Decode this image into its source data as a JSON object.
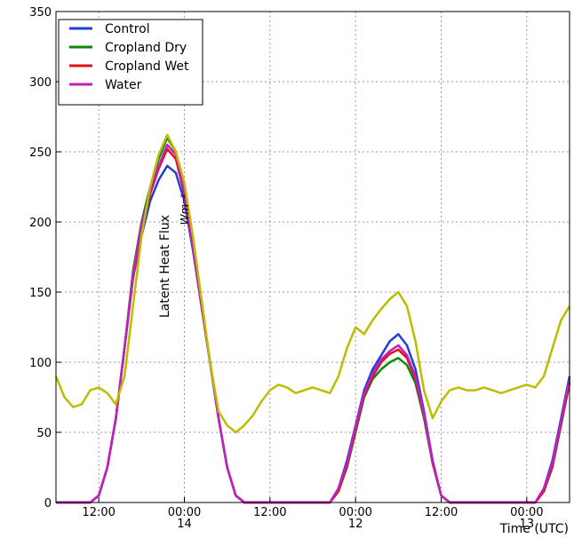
{
  "chart_data": {
    "type": "line",
    "ylabel": "Latent Heat Flux",
    "yunit": "Wm⁻²",
    "xlabel": "Time (UTC)",
    "ylim": [
      0,
      350
    ],
    "yticks": [
      0,
      50,
      100,
      150,
      200,
      250,
      300,
      350
    ],
    "grid": true,
    "legend_position": "top-left",
    "x_tick_labels": [
      {
        "time": "12:00",
        "day": ""
      },
      {
        "time": "00:00",
        "day": "14"
      },
      {
        "time": "12:00",
        "day": ""
      },
      {
        "time": "00:00",
        "day": "12"
      },
      {
        "time": "12:00",
        "day": ""
      },
      {
        "time": "00:00",
        "day": "13"
      }
    ],
    "x_hours": [
      -12,
      -11,
      -10,
      -9,
      -8,
      -7,
      -6,
      -5,
      -4,
      -3,
      -2,
      -1,
      0,
      1,
      2,
      3,
      4,
      5,
      6,
      7,
      8,
      9,
      10,
      11,
      12,
      13,
      14,
      15,
      16,
      17,
      18,
      19,
      20,
      21,
      22,
      23,
      24,
      25,
      26,
      27,
      28,
      29,
      30,
      31,
      32,
      33,
      34,
      35,
      36,
      37,
      38,
      39,
      40,
      41,
      42,
      43,
      44,
      45,
      46,
      47,
      48
    ],
    "series": [
      {
        "name": "Control",
        "color": "#1f3fd6",
        "values": [
          0,
          0,
          0,
          0,
          0,
          5,
          25,
          60,
          110,
          160,
          190,
          215,
          230,
          240,
          235,
          215,
          180,
          140,
          100,
          60,
          25,
          5,
          0,
          0,
          0,
          0,
          0,
          0,
          0,
          0,
          0,
          0,
          0,
          10,
          30,
          55,
          80,
          95,
          105,
          115,
          120,
          112,
          95,
          65,
          30,
          5,
          0,
          0,
          0,
          0,
          0,
          0,
          0,
          0,
          0,
          0,
          0,
          10,
          30,
          60,
          90
        ]
      },
      {
        "name": "Cropland Dry",
        "color": "#0a8a0a",
        "values": [
          0,
          0,
          0,
          0,
          0,
          5,
          25,
          60,
          110,
          165,
          200,
          225,
          245,
          260,
          250,
          225,
          185,
          140,
          100,
          60,
          25,
          5,
          0,
          0,
          0,
          0,
          0,
          0,
          0,
          0,
          0,
          0,
          0,
          8,
          25,
          50,
          75,
          88,
          95,
          100,
          103,
          98,
          85,
          60,
          28,
          5,
          0,
          0,
          0,
          0,
          0,
          0,
          0,
          0,
          0,
          0,
          0,
          8,
          25,
          55,
          85
        ]
      },
      {
        "name": "Cropland Wet",
        "color": "#e01010",
        "values": [
          0,
          0,
          0,
          0,
          0,
          5,
          25,
          60,
          110,
          160,
          195,
          220,
          238,
          252,
          245,
          220,
          182,
          140,
          100,
          60,
          25,
          5,
          0,
          0,
          0,
          0,
          0,
          0,
          0,
          0,
          0,
          0,
          0,
          8,
          26,
          52,
          76,
          90,
          100,
          106,
          109,
          103,
          88,
          62,
          28,
          5,
          0,
          0,
          0,
          0,
          0,
          0,
          0,
          0,
          0,
          0,
          0,
          8,
          26,
          56,
          86
        ]
      },
      {
        "name": "Water",
        "color": "#c020c0",
        "values": [
          0,
          0,
          0,
          0,
          0,
          5,
          25,
          60,
          110,
          162,
          198,
          222,
          240,
          255,
          248,
          222,
          183,
          141,
          100,
          60,
          25,
          5,
          0,
          0,
          0,
          0,
          0,
          0,
          0,
          0,
          0,
          0,
          0,
          10,
          28,
          54,
          78,
          92,
          102,
          108,
          112,
          105,
          90,
          63,
          29,
          5,
          0,
          0,
          0,
          0,
          0,
          0,
          0,
          0,
          0,
          0,
          0,
          10,
          28,
          58,
          88
        ]
      },
      {
        "name": "",
        "color": "#bdbd00",
        "values": [
          90,
          75,
          68,
          70,
          80,
          82,
          78,
          70,
          90,
          140,
          190,
          225,
          248,
          262,
          250,
          228,
          190,
          145,
          100,
          65,
          55,
          50,
          55,
          62,
          72,
          80,
          84,
          82,
          78,
          80,
          82,
          80,
          78,
          90,
          110,
          125,
          120,
          130,
          138,
          145,
          150,
          140,
          115,
          80,
          60,
          72,
          80,
          82,
          80,
          80,
          82,
          80,
          78,
          80,
          82,
          84,
          82,
          90,
          110,
          130,
          140
        ]
      }
    ]
  },
  "legend": [
    {
      "label": "Control",
      "color": "#1f3fd6"
    },
    {
      "label": "Cropland Dry",
      "color": "#0a8a0a"
    },
    {
      "label": "Cropland Wet",
      "color": "#e01010"
    },
    {
      "label": "Water",
      "color": "#c020c0"
    }
  ]
}
